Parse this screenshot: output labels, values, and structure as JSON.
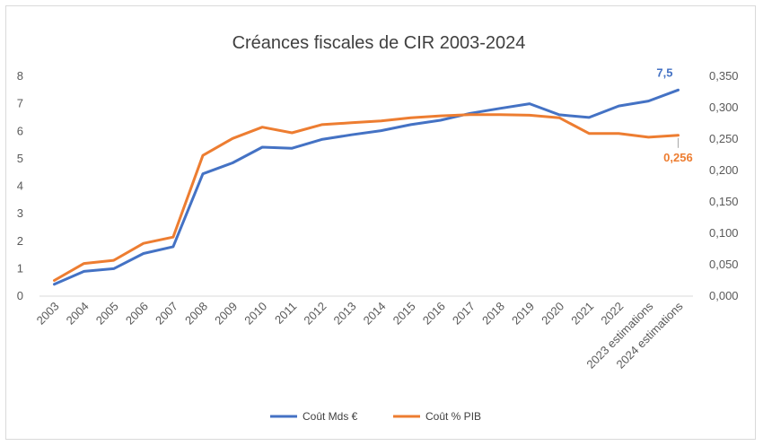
{
  "chart_data": {
    "type": "line",
    "title": "Créances fiscales de CIR 2003-2024",
    "categories": [
      "2003",
      "2004",
      "2005",
      "2006",
      "2007",
      "2008",
      "2009",
      "2010",
      "2011",
      "2012",
      "2013",
      "2014",
      "2015",
      "2016",
      "2017",
      "2018",
      "2019",
      "2020",
      "2021",
      "2022",
      "2023 estimations",
      "2024 estimations"
    ],
    "series": [
      {
        "name": "Coût Mds €",
        "axis": "left",
        "color": "#4472c4",
        "values": [
          0.43,
          0.9,
          1.0,
          1.55,
          1.8,
          4.45,
          4.85,
          5.42,
          5.38,
          5.7,
          5.87,
          6.02,
          6.24,
          6.4,
          6.65,
          6.83,
          7.0,
          6.6,
          6.5,
          6.92,
          7.1,
          7.5
        ]
      },
      {
        "name": "Coût % PIB",
        "axis": "right",
        "color": "#ed7d31",
        "values": [
          0.025,
          0.052,
          0.057,
          0.084,
          0.094,
          0.224,
          0.251,
          0.269,
          0.26,
          0.273,
          0.276,
          0.279,
          0.284,
          0.287,
          0.289,
          0.289,
          0.288,
          0.284,
          0.259,
          0.259,
          0.253,
          0.256
        ]
      }
    ],
    "y_left": {
      "min": 0,
      "max": 8,
      "ticks": [
        "0",
        "1",
        "2",
        "3",
        "4",
        "5",
        "6",
        "7",
        "8"
      ]
    },
    "y_right": {
      "min": 0,
      "max": 0.35,
      "ticks": [
        "0,000",
        "0,050",
        "0,100",
        "0,150",
        "0,200",
        "0,250",
        "0,300",
        "0,350"
      ]
    },
    "data_labels": [
      {
        "series": 0,
        "index": 21,
        "text": "7,5"
      },
      {
        "series": 1,
        "index": 21,
        "text": "0,256"
      }
    ],
    "grid": false,
    "legend_position": "bottom"
  }
}
